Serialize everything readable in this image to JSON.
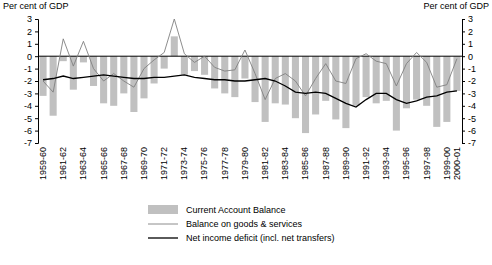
{
  "chart_data": {
    "type": "bar",
    "ylabel": "Per cent of GDP",
    "y2label": "Per cent of GDP",
    "categories": [
      "1959-60",
      null,
      "1961-62",
      null,
      "1963-64",
      null,
      "1965-66",
      null,
      "1967-68",
      null,
      "1969-70",
      null,
      "1971-72",
      null,
      "1973-74",
      null,
      "1975-76",
      null,
      "1977-78",
      null,
      "1979-80",
      null,
      "1981-82",
      null,
      "1983-84",
      null,
      "1985-86",
      null,
      "1987-88",
      null,
      "1989-90",
      null,
      "1991-92",
      null,
      "1993-94",
      null,
      "1995-96",
      null,
      "1997-98",
      null,
      "1999-00",
      "2000-01"
    ],
    "series": [
      {
        "name": "Current Account Balance",
        "type": "bar",
        "color": "#c0c0c0",
        "values": [
          -3.2,
          -4.8,
          -0.4,
          -2.7,
          -0.5,
          -2.4,
          -3.8,
          -4.0,
          -3.0,
          -4.5,
          -3.4,
          -2.2,
          -1.0,
          1.6,
          -1.5,
          -1.2,
          -1.5,
          -2.6,
          -3.0,
          -3.3,
          -1.8,
          -3.7,
          -5.3,
          -3.8,
          -3.9,
          -5.0,
          -6.2,
          -4.7,
          -3.6,
          -5.1,
          -5.8,
          -4.0,
          -3.3,
          -3.8,
          -3.6,
          -6.0,
          -4.2,
          -3.5,
          -4.0,
          -5.7,
          -5.3,
          -2.8
        ]
      },
      {
        "name": "Balance on goods & services",
        "type": "line",
        "color": "#808080",
        "values": [
          -2.0,
          -2.9,
          1.4,
          -0.8,
          1.2,
          -1.0,
          -2.0,
          -1.4,
          -2.0,
          -2.5,
          -1.0,
          -0.3,
          0.3,
          3.0,
          0.2,
          -0.5,
          0.0,
          -0.9,
          -1.2,
          -1.1,
          0.5,
          -1.4,
          -3.5,
          -1.8,
          -1.4,
          -2.0,
          -3.2,
          -1.8,
          -0.6,
          -2.0,
          -2.2,
          -0.2,
          0.2,
          -0.4,
          -0.6,
          -2.4,
          -0.6,
          0.3,
          -0.5,
          -2.5,
          -2.3,
          -0.2
        ]
      },
      {
        "name": "Net income deficit (incl. net transfers)",
        "type": "line",
        "color": "#000000",
        "values": [
          -1.9,
          -1.8,
          -1.6,
          -1.8,
          -1.7,
          -1.6,
          -1.5,
          -1.6,
          -1.7,
          -1.8,
          -1.8,
          -1.7,
          -1.7,
          -1.6,
          -1.5,
          -1.7,
          -1.8,
          -1.9,
          -1.9,
          -2.0,
          -2.0,
          -1.9,
          -1.8,
          -2.0,
          -2.4,
          -2.9,
          -3.0,
          -2.9,
          -3.0,
          -3.4,
          -3.8,
          -4.1,
          -3.5,
          -3.0,
          -3.0,
          -3.5,
          -3.8,
          -3.6,
          -3.3,
          -3.2,
          -2.9,
          -2.8
        ]
      }
    ],
    "ylim": [
      -7,
      3
    ],
    "yticks": [
      -7,
      -6,
      -5,
      -4,
      -3,
      -2,
      -1,
      0,
      1,
      2,
      3
    ],
    "y2lim": [
      -7,
      3
    ],
    "y2ticks": [
      -7,
      -6,
      -5,
      -4,
      -3,
      -2,
      -1,
      0,
      1,
      2,
      3
    ],
    "legend": "bottom"
  }
}
